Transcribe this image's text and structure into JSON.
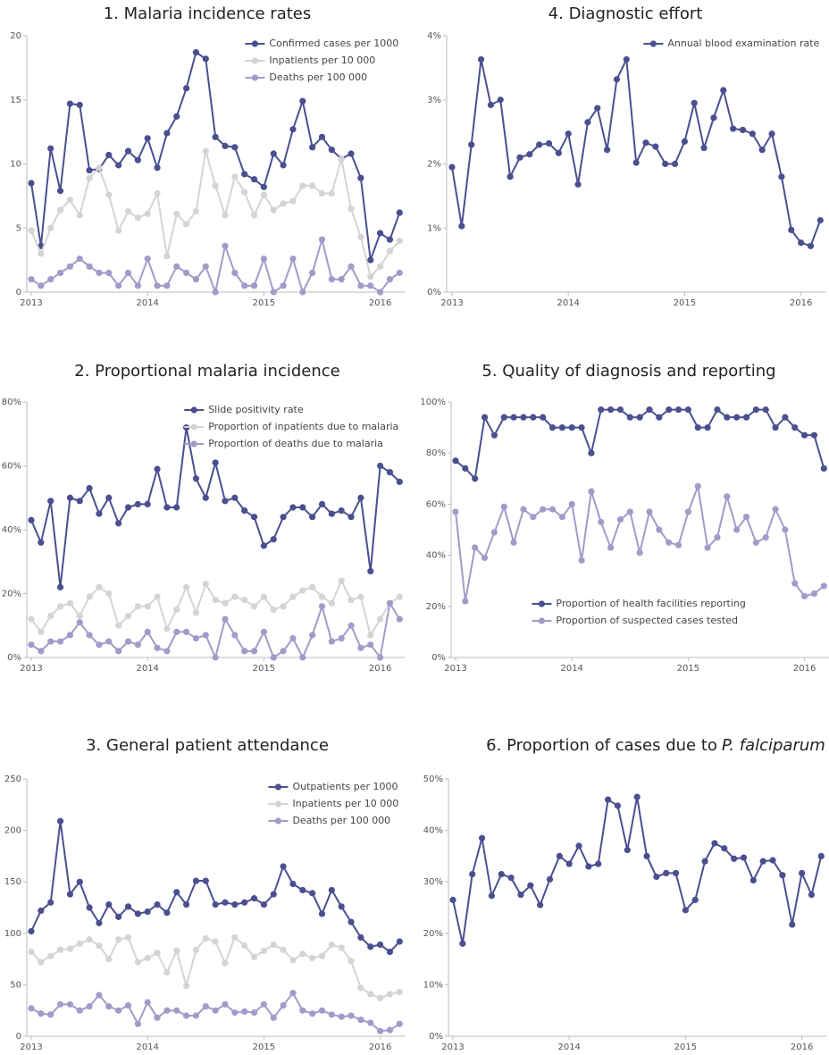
{
  "chart_data": [
    {
      "type": "line",
      "title": "1. Malaria incidence rates",
      "categories": [
        "2013",
        null,
        null,
        null,
        null,
        null,
        null,
        null,
        null,
        null,
        null,
        null,
        "2014",
        null,
        null,
        null,
        null,
        null,
        null,
        null,
        null,
        null,
        null,
        null,
        "2015",
        null,
        null,
        null,
        null,
        null,
        null,
        null,
        null,
        null,
        null,
        null,
        "2016",
        null,
        null
      ],
      "ylim": [
        0,
        20
      ],
      "yticks": [
        0,
        5,
        10,
        15,
        20
      ],
      "legend": "upper right",
      "series": [
        {
          "name": "Confirmed cases per 1000",
          "color": "#4a4f8f",
          "values": [
            8.5,
            3.6,
            11.2,
            7.9,
            14.7,
            14.6,
            9.5,
            9.6,
            10.7,
            9.9,
            11.0,
            10.3,
            12.0,
            9.7,
            12.4,
            13.7,
            15.9,
            18.7,
            18.2,
            12.1,
            11.4,
            11.3,
            9.2,
            8.8,
            8.2,
            10.8,
            9.9,
            12.7,
            14.9,
            11.3,
            12.1,
            11.1,
            10.4,
            10.8,
            8.9,
            2.5,
            4.6,
            4.1,
            6.2
          ]
        },
        {
          "name": "Inpatients per 10 000",
          "color": "#d4d4d4",
          "values": [
            4.8,
            3.0,
            5.0,
            6.4,
            7.2,
            6.0,
            8.9,
            9.7,
            7.6,
            4.8,
            6.3,
            5.8,
            6.1,
            7.7,
            2.8,
            6.1,
            5.3,
            6.3,
            11.0,
            8.3,
            6.0,
            9.0,
            7.8,
            6.0,
            7.6,
            6.4,
            6.9,
            7.1,
            8.3,
            8.3,
            7.7,
            7.7,
            10.4,
            6.5,
            4.3,
            1.2,
            2.0,
            3.2,
            4.0
          ]
        },
        {
          "name": "Deaths per 100 000",
          "color": "#a09cc9",
          "values": [
            1.0,
            0.5,
            1.0,
            1.5,
            2.0,
            2.6,
            2.0,
            1.5,
            1.5,
            0.5,
            1.5,
            0.5,
            2.6,
            0.5,
            0.5,
            2.0,
            1.5,
            1.0,
            2.0,
            0,
            3.6,
            1.5,
            0.5,
            0.5,
            2.6,
            0,
            0.5,
            2.6,
            0,
            1.5,
            4.1,
            1.0,
            1.0,
            2.0,
            0.5,
            0.5,
            0,
            1.0,
            1.5
          ]
        }
      ]
    },
    {
      "type": "line",
      "title": "2. Proportional malaria incidence",
      "categories": [
        "2013",
        null,
        null,
        null,
        null,
        null,
        null,
        null,
        null,
        null,
        null,
        null,
        "2014",
        null,
        null,
        null,
        null,
        null,
        null,
        null,
        null,
        null,
        null,
        null,
        "2015",
        null,
        null,
        null,
        null,
        null,
        null,
        null,
        null,
        null,
        null,
        null,
        "2016",
        null,
        null
      ],
      "ylim": [
        0,
        80
      ],
      "yticks": [
        {
          "value": 0,
          "label": "0%"
        },
        {
          "value": 20,
          "label": "20%"
        },
        {
          "value": 40,
          "label": "40%"
        },
        {
          "value": 60,
          "label": "60%"
        },
        {
          "value": 80,
          "label": "80%"
        }
      ],
      "legend": "upper right",
      "series": [
        {
          "name": "Slide positivity rate",
          "color": "#4a4f8f",
          "values": [
            43,
            36,
            49,
            22,
            50,
            49,
            53,
            45,
            50,
            42,
            47,
            48,
            48,
            59,
            47,
            47,
            72,
            56,
            50,
            61,
            49,
            50,
            46,
            44,
            35,
            37,
            44,
            47,
            47,
            44,
            48,
            45,
            46,
            44,
            50,
            27,
            60,
            58,
            55
          ]
        },
        {
          "name": "Proportion of inpatients due to malaria",
          "color": "#d4d4d4",
          "values": [
            12,
            8,
            13,
            16,
            17,
            13,
            19,
            22,
            20,
            10,
            13,
            16,
            16,
            19,
            9,
            15,
            22,
            14,
            23,
            18,
            17,
            19,
            18,
            16,
            19,
            15,
            16,
            19,
            21,
            22,
            19,
            17,
            24,
            18,
            19,
            7,
            12,
            17,
            19
          ]
        },
        {
          "name": "Proportion of deaths due to malaria",
          "color": "#a09cc9",
          "values": [
            4,
            2,
            5,
            5,
            7,
            11,
            7,
            4,
            5,
            2,
            5,
            4,
            8,
            3,
            2,
            8,
            8,
            6,
            7,
            0,
            12,
            7,
            2,
            2,
            8,
            0,
            2,
            6,
            0,
            7,
            16,
            5,
            6,
            10,
            3,
            4,
            0,
            17,
            12
          ]
        }
      ]
    },
    {
      "type": "line",
      "title": "3. General patient attendance",
      "categories": [
        "2013",
        null,
        null,
        null,
        null,
        null,
        null,
        null,
        null,
        null,
        null,
        null,
        "2014",
        null,
        null,
        null,
        null,
        null,
        null,
        null,
        null,
        null,
        null,
        null,
        "2015",
        null,
        null,
        null,
        null,
        null,
        null,
        null,
        null,
        null,
        null,
        null,
        "2016",
        null,
        null
      ],
      "ylim": [
        0,
        250
      ],
      "yticks": [
        0,
        50,
        100,
        150,
        200,
        250
      ],
      "legend": "upper right",
      "series": [
        {
          "name": "Outpatients per 1000",
          "color": "#4a4f8f",
          "values": [
            102,
            122,
            130,
            209,
            138,
            150,
            125,
            110,
            128,
            116,
            126,
            119,
            121,
            128,
            120,
            140,
            128,
            151,
            151,
            128,
            130,
            128,
            130,
            134,
            128,
            138,
            165,
            148,
            142,
            139,
            119,
            142,
            126,
            111,
            96,
            87,
            89,
            82,
            92
          ]
        },
        {
          "name": "Inpatients per 10 000",
          "color": "#d4d4d4",
          "values": [
            82,
            72,
            78,
            84,
            85,
            90,
            94,
            88,
            75,
            94,
            96,
            72,
            76,
            81,
            62,
            83,
            49,
            84,
            95,
            92,
            71,
            96,
            88,
            77,
            83,
            89,
            84,
            74,
            80,
            76,
            78,
            89,
            86,
            73,
            47,
            41,
            37,
            41,
            43
          ]
        },
        {
          "name": "Deaths per 100 000",
          "color": "#a09cc9",
          "values": [
            27,
            22,
            21,
            31,
            31,
            25,
            29,
            40,
            29,
            25,
            30,
            12,
            33,
            18,
            25,
            25,
            20,
            20,
            29,
            25,
            31,
            23,
            24,
            23,
            31,
            18,
            30,
            42,
            25,
            22,
            25,
            21,
            19,
            20,
            16,
            13,
            5,
            6,
            12
          ]
        }
      ]
    },
    {
      "type": "line",
      "title": "4. Diagnostic effort",
      "categories": [
        "2013",
        null,
        null,
        null,
        null,
        null,
        null,
        null,
        null,
        null,
        null,
        null,
        "2014",
        null,
        null,
        null,
        null,
        null,
        null,
        null,
        null,
        null,
        null,
        null,
        "2015",
        null,
        null,
        null,
        null,
        null,
        null,
        null,
        null,
        null,
        null,
        null,
        "2016",
        null,
        null
      ],
      "ylim": [
        0,
        4
      ],
      "yticks": [
        {
          "value": 0,
          "label": "0%"
        },
        {
          "value": 1,
          "label": "1%"
        },
        {
          "value": 2,
          "label": "2%"
        },
        {
          "value": 3,
          "label": "3%"
        },
        {
          "value": 4,
          "label": "4%"
        }
      ],
      "legend": "upper right",
      "series": [
        {
          "name": "Annual blood examination rate",
          "color": "#4a4f8f",
          "values": [
            1.95,
            1.03,
            2.3,
            3.63,
            2.92,
            3.0,
            1.8,
            2.1,
            2.15,
            2.3,
            2.32,
            2.17,
            2.47,
            1.68,
            2.65,
            2.87,
            2.22,
            3.32,
            3.63,
            2.02,
            2.33,
            2.27,
            2.0,
            2.0,
            2.35,
            2.95,
            2.25,
            2.72,
            3.15,
            2.55,
            2.53,
            2.47,
            2.22,
            2.47,
            1.8,
            0.97,
            0.77,
            0.72,
            1.12
          ]
        }
      ]
    },
    {
      "type": "line",
      "title": "5. Quality of diagnosis and reporting",
      "categories": [
        "2013",
        null,
        null,
        null,
        null,
        null,
        null,
        null,
        null,
        null,
        null,
        null,
        "2014",
        null,
        null,
        null,
        null,
        null,
        null,
        null,
        null,
        null,
        null,
        null,
        "2015",
        null,
        null,
        null,
        null,
        null,
        null,
        null,
        null,
        null,
        null,
        null,
        "2016",
        null,
        null
      ],
      "ylim": [
        0,
        100
      ],
      "yticks": [
        {
          "value": 0,
          "label": "0%"
        },
        {
          "value": 20,
          "label": "20%"
        },
        {
          "value": 40,
          "label": "40%"
        },
        {
          "value": 60,
          "label": "60%"
        },
        {
          "value": 80,
          "label": "80%"
        },
        {
          "value": 100,
          "label": "100%"
        }
      ],
      "legend": "lower center",
      "series": [
        {
          "name": "Proportion of health facilities reporting",
          "color": "#4a4f8f",
          "values": [
            77,
            74,
            70,
            94,
            87,
            94,
            94,
            94,
            94,
            94,
            90,
            90,
            90,
            90,
            80,
            97,
            97,
            97,
            94,
            94,
            97,
            94,
            97,
            97,
            97,
            90,
            90,
            97,
            94,
            94,
            94,
            97,
            97,
            90,
            94,
            90,
            87,
            87,
            74
          ]
        },
        {
          "name": "Proportion of suspected cases tested",
          "color": "#a09cc9",
          "values": [
            57,
            22,
            43,
            39,
            49,
            59,
            45,
            58,
            55,
            58,
            58,
            55,
            60,
            38,
            65,
            53,
            43,
            54,
            57,
            41,
            57,
            50,
            45,
            44,
            57,
            67,
            43,
            47,
            63,
            50,
            55,
            45,
            47,
            58,
            50,
            29,
            24,
            25,
            28
          ]
        }
      ]
    },
    {
      "type": "line",
      "title": "6. Proportion of cases due to",
      "title_italic": "P. falciparum",
      "categories": [
        "2013",
        null,
        null,
        null,
        null,
        null,
        null,
        null,
        null,
        null,
        null,
        null,
        "2014",
        null,
        null,
        null,
        null,
        null,
        null,
        null,
        null,
        null,
        null,
        null,
        "2015",
        null,
        null,
        null,
        null,
        null,
        null,
        null,
        null,
        null,
        null,
        null,
        "2016",
        null,
        null
      ],
      "ylim": [
        0,
        50
      ],
      "yticks": [
        {
          "value": 0,
          "label": "0%"
        },
        {
          "value": 10,
          "label": "10%"
        },
        {
          "value": 20,
          "label": "20%"
        },
        {
          "value": 30,
          "label": "30%"
        },
        {
          "value": 40,
          "label": "40%"
        },
        {
          "value": 50,
          "label": "50%"
        }
      ],
      "color": "#4a4f8f",
      "values": [
        26.5,
        18,
        31.5,
        38.5,
        27.3,
        31.5,
        30.8,
        27.5,
        29.3,
        25.5,
        30.5,
        35,
        33.5,
        37,
        33,
        33.5,
        46,
        44.8,
        36.2,
        46.5,
        35,
        31,
        31.7,
        31.7,
        24.5,
        26.5,
        34,
        37.5,
        36.5,
        34.5,
        34.7,
        30.3,
        34,
        34.2,
        31.3,
        21.7,
        31.7,
        27.5,
        35
      ]
    }
  ]
}
